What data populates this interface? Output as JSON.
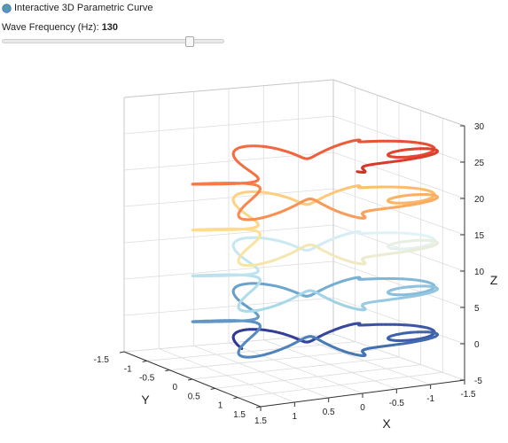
{
  "header": {
    "title": "Interactive 3D Parametric Curve",
    "globe_icon": "globe-icon"
  },
  "control": {
    "label": "Wave Frequency (Hz):",
    "value": "130",
    "slider_fraction": 0.86
  },
  "chart_data": {
    "type": "line3d",
    "axes": {
      "x": {
        "label": "X",
        "ticks": [
          "1.5",
          "1",
          "0.5",
          "0",
          "-0.5",
          "-1",
          "-1.5"
        ]
      },
      "y": {
        "label": "Y",
        "ticks": [
          "-1.5",
          "-1",
          "-0.5",
          "0",
          "0.5",
          "1",
          "1.5"
        ]
      },
      "z": {
        "label": "Z",
        "ticks": [
          "-5",
          "0",
          "5",
          "10",
          "15",
          "20",
          "25",
          "30"
        ]
      }
    },
    "grid": true,
    "colormap": [
      "#313695",
      "#4575b4",
      "#74add1",
      "#abd9e9",
      "#e0f3f8",
      "#fee090",
      "#fdae61",
      "#f46d43",
      "#d73027"
    ]
  }
}
